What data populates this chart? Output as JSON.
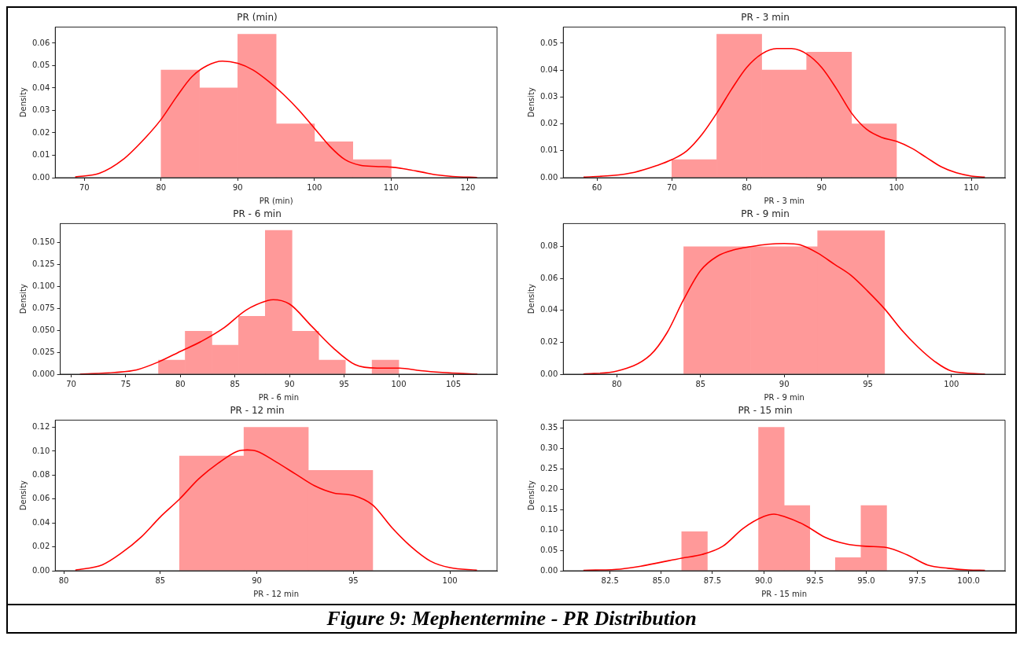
{
  "chart_data": [
    {
      "type": "histogram",
      "title": "PR (min)",
      "xlabel": "PR (min)",
      "ylabel": "Density",
      "color": "#ff9999",
      "bins": [
        80,
        85,
        90,
        95,
        100,
        105,
        110
      ],
      "values": [
        0.048,
        0.04,
        0.064,
        0.024,
        0.016,
        0.008
      ],
      "xlim": [
        66.2,
        123.8
      ],
      "xticks": [
        70,
        80,
        90,
        100,
        110,
        120
      ],
      "ylim": [
        0,
        0.0672
      ],
      "yticks": [
        {
          "value": 0,
          "label": "0.00"
        },
        {
          "value": 0.01,
          "label": "0.01"
        },
        0.02,
        0.03,
        0.04,
        0.05,
        0.06
      ],
      "grid": false,
      "legend": false,
      "series": [
        {
          "type": "line",
          "color": "#ff0000",
          "x": [
            68.8,
            72,
            75,
            78,
            80,
            82,
            84,
            86,
            88,
            90,
            92,
            94,
            96,
            98,
            100,
            102,
            104,
            106,
            108,
            110,
            112,
            114,
            116,
            118,
            121.2
          ],
          "values": [
            0.0003,
            0.002,
            0.008,
            0.018,
            0.026,
            0.036,
            0.045,
            0.05,
            0.052,
            0.051,
            0.048,
            0.043,
            0.037,
            0.03,
            0.022,
            0.014,
            0.008,
            0.0055,
            0.005,
            0.0047,
            0.0038,
            0.0025,
            0.0012,
            0.0005,
            0.0001
          ]
        }
      ]
    },
    {
      "type": "histogram",
      "title": "PR - 3 min",
      "xlabel": "PR - 3 min",
      "ylabel": "Density",
      "color": "#ff9999",
      "bins": [
        70,
        76,
        82,
        88,
        94,
        100
      ],
      "values": [
        0.0067,
        0.0533,
        0.04,
        0.0467,
        0.02
      ],
      "xlim": [
        55.5,
        114.5
      ],
      "xticks": [
        60,
        70,
        80,
        90,
        100,
        110
      ],
      "ylim": [
        0,
        0.056
      ],
      "yticks": [
        {
          "value": 0,
          "label": "0.00"
        },
        0.01,
        0.02,
        0.03,
        0.04,
        0.05
      ],
      "grid": false,
      "legend": false,
      "series": [
        {
          "type": "line",
          "color": "#ff0000",
          "x": [
            58.2,
            62,
            65,
            68,
            70,
            72,
            74,
            76,
            78,
            80,
            82,
            84,
            86,
            88,
            90,
            92,
            94,
            96,
            98,
            100,
            102,
            104,
            106,
            108,
            110,
            111.8
          ],
          "values": [
            0.0002,
            0.0008,
            0.002,
            0.0045,
            0.0067,
            0.01,
            0.016,
            0.024,
            0.033,
            0.041,
            0.046,
            0.048,
            0.048,
            0.046,
            0.041,
            0.033,
            0.024,
            0.018,
            0.015,
            0.0135,
            0.011,
            0.0075,
            0.004,
            0.0018,
            0.0006,
            0.0002
          ]
        }
      ]
    },
    {
      "type": "histogram",
      "title": "PR - 6 min",
      "xlabel": "PR - 6 min",
      "ylabel": "Density",
      "color": "#ff9999",
      "bins": [
        78,
        80.44,
        82.89,
        85.33,
        87.78,
        90.22,
        92.67,
        95.11,
        97.56,
        100
      ],
      "values": [
        0.016,
        0.049,
        0.033,
        0.066,
        0.164,
        0.049,
        0.016,
        0,
        0.016
      ],
      "xlim": [
        69,
        109
      ],
      "xticks": [
        70,
        75,
        80,
        85,
        90,
        95,
        100,
        105
      ],
      "ylim": [
        0,
        0.1718
      ],
      "yticks": [
        {
          "value": 0,
          "label": "0.000"
        },
        0.025,
        {
          "value": 0.05,
          "label": "0.050"
        },
        0.075,
        {
          "value": 0.1,
          "label": "0.100"
        },
        0.125,
        {
          "value": 0.15,
          "label": "0.150"
        }
      ],
      "grid": false,
      "legend": false,
      "series": [
        {
          "type": "line",
          "color": "#ff0000",
          "x": [
            70.8,
            74,
            76,
            78,
            80,
            82,
            84,
            86,
            88,
            88.5,
            90,
            92,
            94,
            96,
            98,
            100,
            102,
            104,
            107.2
          ],
          "values": [
            0,
            0.002,
            0.005,
            0.014,
            0.026,
            0.038,
            0.053,
            0.073,
            0.084,
            0.085,
            0.08,
            0.055,
            0.03,
            0.011,
            0.007,
            0.007,
            0.004,
            0.002,
            0
          ]
        }
      ]
    },
    {
      "type": "histogram",
      "title": "PR - 9 min",
      "xlabel": "PR - 9 min",
      "ylabel": "Density",
      "color": "#ff9999",
      "bins": [
        84,
        88,
        92,
        96
      ],
      "values": [
        0.08,
        0.08,
        0.09
      ],
      "xlim": [
        76.8,
        103.2
      ],
      "xticks": [
        80,
        85,
        90,
        95,
        100
      ],
      "ylim": [
        0,
        0.0945
      ],
      "yticks": [
        {
          "value": 0,
          "label": "0.00"
        },
        0.02,
        0.04,
        0.06,
        0.08
      ],
      "grid": false,
      "legend": false,
      "series": [
        {
          "type": "line",
          "color": "#ff0000",
          "x": [
            78,
            80,
            82,
            83,
            84,
            85,
            86,
            87,
            88,
            89,
            90,
            91,
            92,
            93,
            94,
            95,
            96,
            97,
            98,
            99,
            100,
            102
          ],
          "values": [
            0.0001,
            0.002,
            0.012,
            0.026,
            0.047,
            0.065,
            0.074,
            0.078,
            0.08,
            0.0815,
            0.082,
            0.081,
            0.076,
            0.069,
            0.062,
            0.052,
            0.041,
            0.028,
            0.017,
            0.008,
            0.002,
            0.0001
          ]
        }
      ]
    },
    {
      "type": "histogram",
      "title": "PR - 12 min",
      "xlabel": "PR - 12 min",
      "ylabel": "Density",
      "color": "#ff9999",
      "bins": [
        86,
        89.33,
        92.67,
        96
      ],
      "values": [
        0.096,
        0.12,
        0.084
      ],
      "xlim": [
        79.56,
        102.44
      ],
      "xticks": [
        80,
        85,
        90,
        95,
        100
      ],
      "ylim": [
        0,
        0.126
      ],
      "yticks": [
        {
          "value": 0,
          "label": "0.00"
        },
        0.02,
        0.04,
        0.06,
        0.08,
        {
          "value": 0.1,
          "label": "0.10"
        },
        0.12
      ],
      "grid": false,
      "legend": false,
      "series": [
        {
          "type": "line",
          "color": "#ff0000",
          "x": [
            80.6,
            82,
            83,
            84,
            85,
            86,
            87,
            88,
            89,
            89.5,
            90,
            91,
            92,
            93,
            94,
            95,
            96,
            97,
            98,
            99,
            100,
            101.4
          ],
          "values": [
            0.0005,
            0.005,
            0.015,
            0.028,
            0.045,
            0.06,
            0.077,
            0.09,
            0.1,
            0.101,
            0.1,
            0.091,
            0.081,
            0.071,
            0.065,
            0.063,
            0.055,
            0.036,
            0.02,
            0.008,
            0.0026,
            0.0005
          ]
        }
      ]
    },
    {
      "type": "histogram",
      "title": "PR - 15 min",
      "xlabel": "PR - 15 min",
      "ylabel": "Density",
      "color": "#ff9999",
      "bins": [
        86,
        87.25,
        88.5,
        89.75,
        91,
        92.25,
        93.5,
        94.75,
        96
      ],
      "values": [
        0.096,
        0,
        0,
        0.352,
        0.16,
        0,
        0.032,
        0.16
      ],
      "xlim": [
        80.22,
        101.78
      ],
      "xticks": [
        82.5,
        {
          "value": 85,
          "label": "85.0"
        },
        87.5,
        {
          "value": 90,
          "label": "90.0"
        },
        92.5,
        {
          "value": 95,
          "label": "95.0"
        },
        97.5,
        {
          "value": 100,
          "label": "100.0"
        }
      ],
      "ylim": [
        0,
        0.3696
      ],
      "yticks": [
        {
          "value": 0,
          "label": "0.00"
        },
        0.05,
        {
          "value": 0.1,
          "label": "0.10"
        },
        0.15,
        {
          "value": 0.2,
          "label": "0.20"
        },
        0.25,
        {
          "value": 0.3,
          "label": "0.30"
        },
        0.35
      ],
      "grid": false,
      "legend": false,
      "annotations": [
        "Figure 9: Mephentermine - PR Distribution"
      ],
      "series": [
        {
          "type": "line",
          "color": "#ff0000",
          "x": [
            81.2,
            83,
            84,
            85,
            86,
            87,
            88,
            89,
            90,
            90.5,
            91,
            92,
            93,
            94,
            95,
            96,
            97,
            98,
            99,
            100,
            100.8
          ],
          "values": [
            0.001,
            0.004,
            0.011,
            0.021,
            0.031,
            0.04,
            0.06,
            0.104,
            0.133,
            0.139,
            0.133,
            0.112,
            0.082,
            0.066,
            0.06,
            0.057,
            0.039,
            0.014,
            0.006,
            0.002,
            0.001
          ]
        }
      ]
    }
  ]
}
